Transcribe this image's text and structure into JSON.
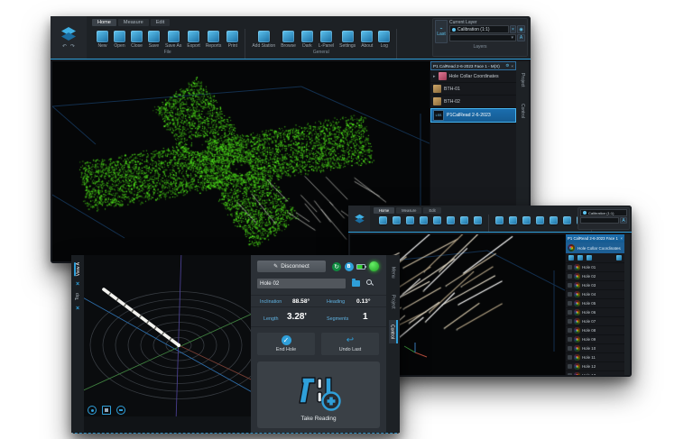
{
  "colors": {
    "accent": "#2f9fd9",
    "led_green": "#35d435",
    "cloud_green": "#55d41f",
    "panel_bg": "#2b3036"
  },
  "window_main": {
    "tabs": [
      "Home",
      "Measure",
      "Edit"
    ],
    "toolbar": {
      "groups": [
        {
          "label": "File",
          "items": [
            "New",
            "Open",
            "Close",
            "Save",
            "Save As",
            "Export",
            "Reports",
            "Print"
          ]
        },
        {
          "label": "General",
          "items": [
            "Add Station",
            "Browse",
            "Dark",
            "L-Panel",
            "Settings",
            "About",
            "Log"
          ]
        }
      ],
      "current_layer_label": "Current Layer",
      "current_layer_value": "Calibration (1:1)",
      "layers_label": "Layers",
      "last_label": "Last"
    },
    "sidebar": {
      "header": "P1 CalRead 2-6-2023 Face 1 - M(X)",
      "items": [
        {
          "label": "Hole Collar Coordinates"
        },
        {
          "label": "BTH-01"
        },
        {
          "label": "BTH-02"
        },
        {
          "label": "P1CalRead 2-6-2023",
          "badge": "LSS"
        }
      ]
    },
    "side_tabs": [
      "Project",
      "Control"
    ]
  },
  "window_secondary": {
    "tabs": [
      "Home",
      "Measure",
      "Edit"
    ],
    "current_layer_value": "Calibration (1:1)",
    "sidebar_header": "P1 CalRead 2-6-2023 Face 1 - M(X)",
    "group_header": "Hole Collar Coordinates",
    "holes": [
      "Hole 01",
      "Hole 02",
      "Hole 03",
      "Hole 04",
      "Hole 05",
      "Hole 06",
      "Hole 07",
      "Hole 08",
      "Hole 09",
      "Hole 10",
      "Hole 11",
      "Hole 12",
      "Hole 13",
      "Hole 14",
      "Hole 15",
      "Hole 16"
    ]
  },
  "window_control": {
    "view_tabs": [
      "View A",
      "Top"
    ],
    "panel": {
      "disconnect_label": "Disconnect",
      "hole_field_value": "Hole 02",
      "inclination_label": "Inclination",
      "inclination_value": "88.58°",
      "heading_label": "Heading",
      "heading_value": "0.13°",
      "length_label": "Length",
      "length_value": "3.28'",
      "segments_label": "Segments",
      "segments_value": "1",
      "end_hole_label": "End Hole",
      "undo_last_label": "Undo Last",
      "take_reading_label": "Take Reading"
    },
    "side_tabs": [
      "Menu",
      "Project",
      "Control"
    ]
  }
}
